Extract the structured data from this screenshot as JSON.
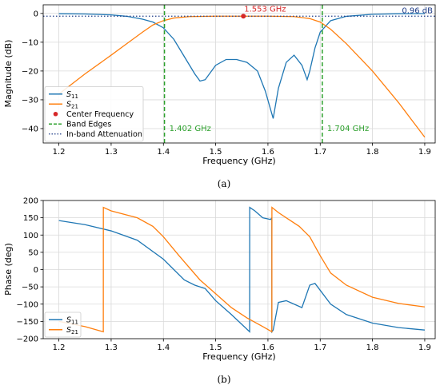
{
  "colors": {
    "s11": "#1f77b4",
    "s21": "#ff7f0e",
    "center": "#d62728",
    "band": "#2ca02c",
    "atten": "#1f3c88"
  },
  "chart_data": [
    {
      "type": "line",
      "caption": "(a)",
      "xlabel": "Frequency (GHz)",
      "ylabel": "Magnitude (dB)",
      "xlim": [
        1.17,
        1.92
      ],
      "ylim": [
        -45,
        3
      ],
      "xticks": [
        1.2,
        1.3,
        1.4,
        1.5,
        1.6,
        1.7,
        1.8,
        1.9
      ],
      "xtick_labels": [
        "1.2",
        "1.3",
        "1.4",
        "1.5",
        "1.6",
        "1.7",
        "1.8",
        "1.9"
      ],
      "yticks": [
        0,
        -10,
        -20,
        -30,
        -40
      ],
      "ytick_labels": [
        "0",
        "−10",
        "−20",
        "−30",
        "−40"
      ],
      "grid": true,
      "legend_position": "lower-left",
      "series": [
        {
          "name": "S11",
          "label_main": "S",
          "label_sub": "11",
          "color_key": "s11",
          "x": [
            1.2,
            1.25,
            1.3,
            1.33,
            1.36,
            1.38,
            1.4,
            1.42,
            1.44,
            1.46,
            1.47,
            1.48,
            1.5,
            1.52,
            1.54,
            1.56,
            1.58,
            1.595,
            1.61,
            1.62,
            1.635,
            1.65,
            1.665,
            1.675,
            1.68,
            1.69,
            1.7,
            1.72,
            1.75,
            1.8,
            1.85,
            1.9
          ],
          "y": [
            -0.1,
            -0.2,
            -0.5,
            -1,
            -2,
            -3,
            -5,
            -9,
            -15,
            -21,
            -23.5,
            -23,
            -18,
            -16,
            -16,
            -17,
            -20,
            -27,
            -36.5,
            -26,
            -17,
            -14.5,
            -18,
            -23,
            -20,
            -12,
            -6.5,
            -2.5,
            -1,
            -0.3,
            -0.1,
            -0.05
          ]
        },
        {
          "name": "S21",
          "label_main": "S",
          "label_sub": "21",
          "color_key": "s21",
          "x": [
            1.2,
            1.25,
            1.3,
            1.33,
            1.36,
            1.38,
            1.4,
            1.42,
            1.45,
            1.5,
            1.553,
            1.6,
            1.65,
            1.68,
            1.7,
            1.72,
            1.75,
            1.8,
            1.85,
            1.9
          ],
          "y": [
            -28,
            -21,
            -14.5,
            -10.5,
            -6.5,
            -4,
            -2.5,
            -1.6,
            -1.1,
            -0.96,
            -0.96,
            -0.96,
            -1.1,
            -1.8,
            -3,
            -5.5,
            -10.5,
            -20,
            -31,
            -43
          ]
        }
      ],
      "markers": [
        {
          "name": "Center Frequency",
          "x": 1.553,
          "y": -0.96,
          "label": "1.553 GHz",
          "color_key": "center"
        }
      ],
      "vlines": [
        {
          "name": "Band Edges",
          "x": 1.402,
          "label": "1.402 GHz",
          "color_key": "band"
        },
        {
          "x": 1.704,
          "label": "1.704 GHz",
          "color_key": "band"
        }
      ],
      "hlines": [
        {
          "name": "In-band Attenuation",
          "y": -0.96,
          "label": "0.96 dB",
          "color_key": "atten"
        }
      ],
      "legend": [
        {
          "kind": "line",
          "main": "S",
          "sub": "11",
          "color_key": "s11"
        },
        {
          "kind": "line",
          "main": "S",
          "sub": "21",
          "color_key": "s21"
        },
        {
          "kind": "dot",
          "text": "Center Frequency",
          "color_key": "center"
        },
        {
          "kind": "dash",
          "text": "Band Edges",
          "color_key": "band"
        },
        {
          "kind": "dot-line",
          "text": "In-band Attenuation",
          "color_key": "atten"
        }
      ]
    },
    {
      "type": "line",
      "caption": "(b)",
      "xlabel": "Frequency (GHz)",
      "ylabel": "Phase (deg)",
      "xlim": [
        1.17,
        1.92
      ],
      "ylim": [
        -200,
        200
      ],
      "xticks": [
        1.2,
        1.3,
        1.4,
        1.5,
        1.6,
        1.7,
        1.8,
        1.9
      ],
      "xtick_labels": [
        "1.2",
        "1.3",
        "1.4",
        "1.5",
        "1.6",
        "1.7",
        "1.8",
        "1.9"
      ],
      "yticks": [
        200,
        150,
        100,
        50,
        0,
        -50,
        -100,
        -150,
        -200
      ],
      "ytick_labels": [
        "200",
        "150",
        "100",
        "50",
        "0",
        "−50",
        "−100",
        "−150",
        "−200"
      ],
      "grid": true,
      "legend_position": "lower-left",
      "series": [
        {
          "name": "S11",
          "label_main": "S",
          "label_sub": "11",
          "color_key": "s11",
          "x": [
            1.2,
            1.25,
            1.3,
            1.35,
            1.4,
            1.44,
            1.46,
            1.48,
            1.5,
            1.53,
            1.565,
            1.5651,
            1.575,
            1.59,
            1.605,
            1.6075,
            1.6076,
            1.61,
            1.62,
            1.635,
            1.65,
            1.665,
            1.68,
            1.69,
            1.7,
            1.72,
            1.75,
            1.8,
            1.85,
            1.9
          ],
          "y": [
            142,
            130,
            112,
            85,
            30,
            -30,
            -45,
            -55,
            -90,
            -130,
            -180,
            180,
            170,
            150,
            145,
            150,
            -180,
            -175,
            -95,
            -90,
            -100,
            -110,
            -45,
            -40,
            -60,
            -100,
            -130,
            -155,
            -168,
            -175
          ]
        },
        {
          "name": "S21",
          "label_main": "S",
          "label_sub": "21",
          "color_key": "s21",
          "x": [
            1.2,
            1.25,
            1.285,
            1.2851,
            1.3,
            1.35,
            1.38,
            1.4,
            1.43,
            1.47,
            1.5,
            1.53,
            1.56,
            1.59,
            1.6075,
            1.6076,
            1.62,
            1.64,
            1.66,
            1.68,
            1.7,
            1.72,
            1.75,
            1.8,
            1.85,
            1.9
          ],
          "y": [
            -150,
            -165,
            -180,
            180,
            170,
            150,
            125,
            95,
            40,
            -30,
            -70,
            -110,
            -140,
            -165,
            -180,
            180,
            165,
            145,
            125,
            95,
            40,
            -10,
            -45,
            -80,
            -98,
            -108
          ]
        }
      ],
      "legend": [
        {
          "kind": "line",
          "main": "S",
          "sub": "11",
          "color_key": "s11"
        },
        {
          "kind": "line",
          "main": "S",
          "sub": "21",
          "color_key": "s21"
        }
      ]
    }
  ]
}
